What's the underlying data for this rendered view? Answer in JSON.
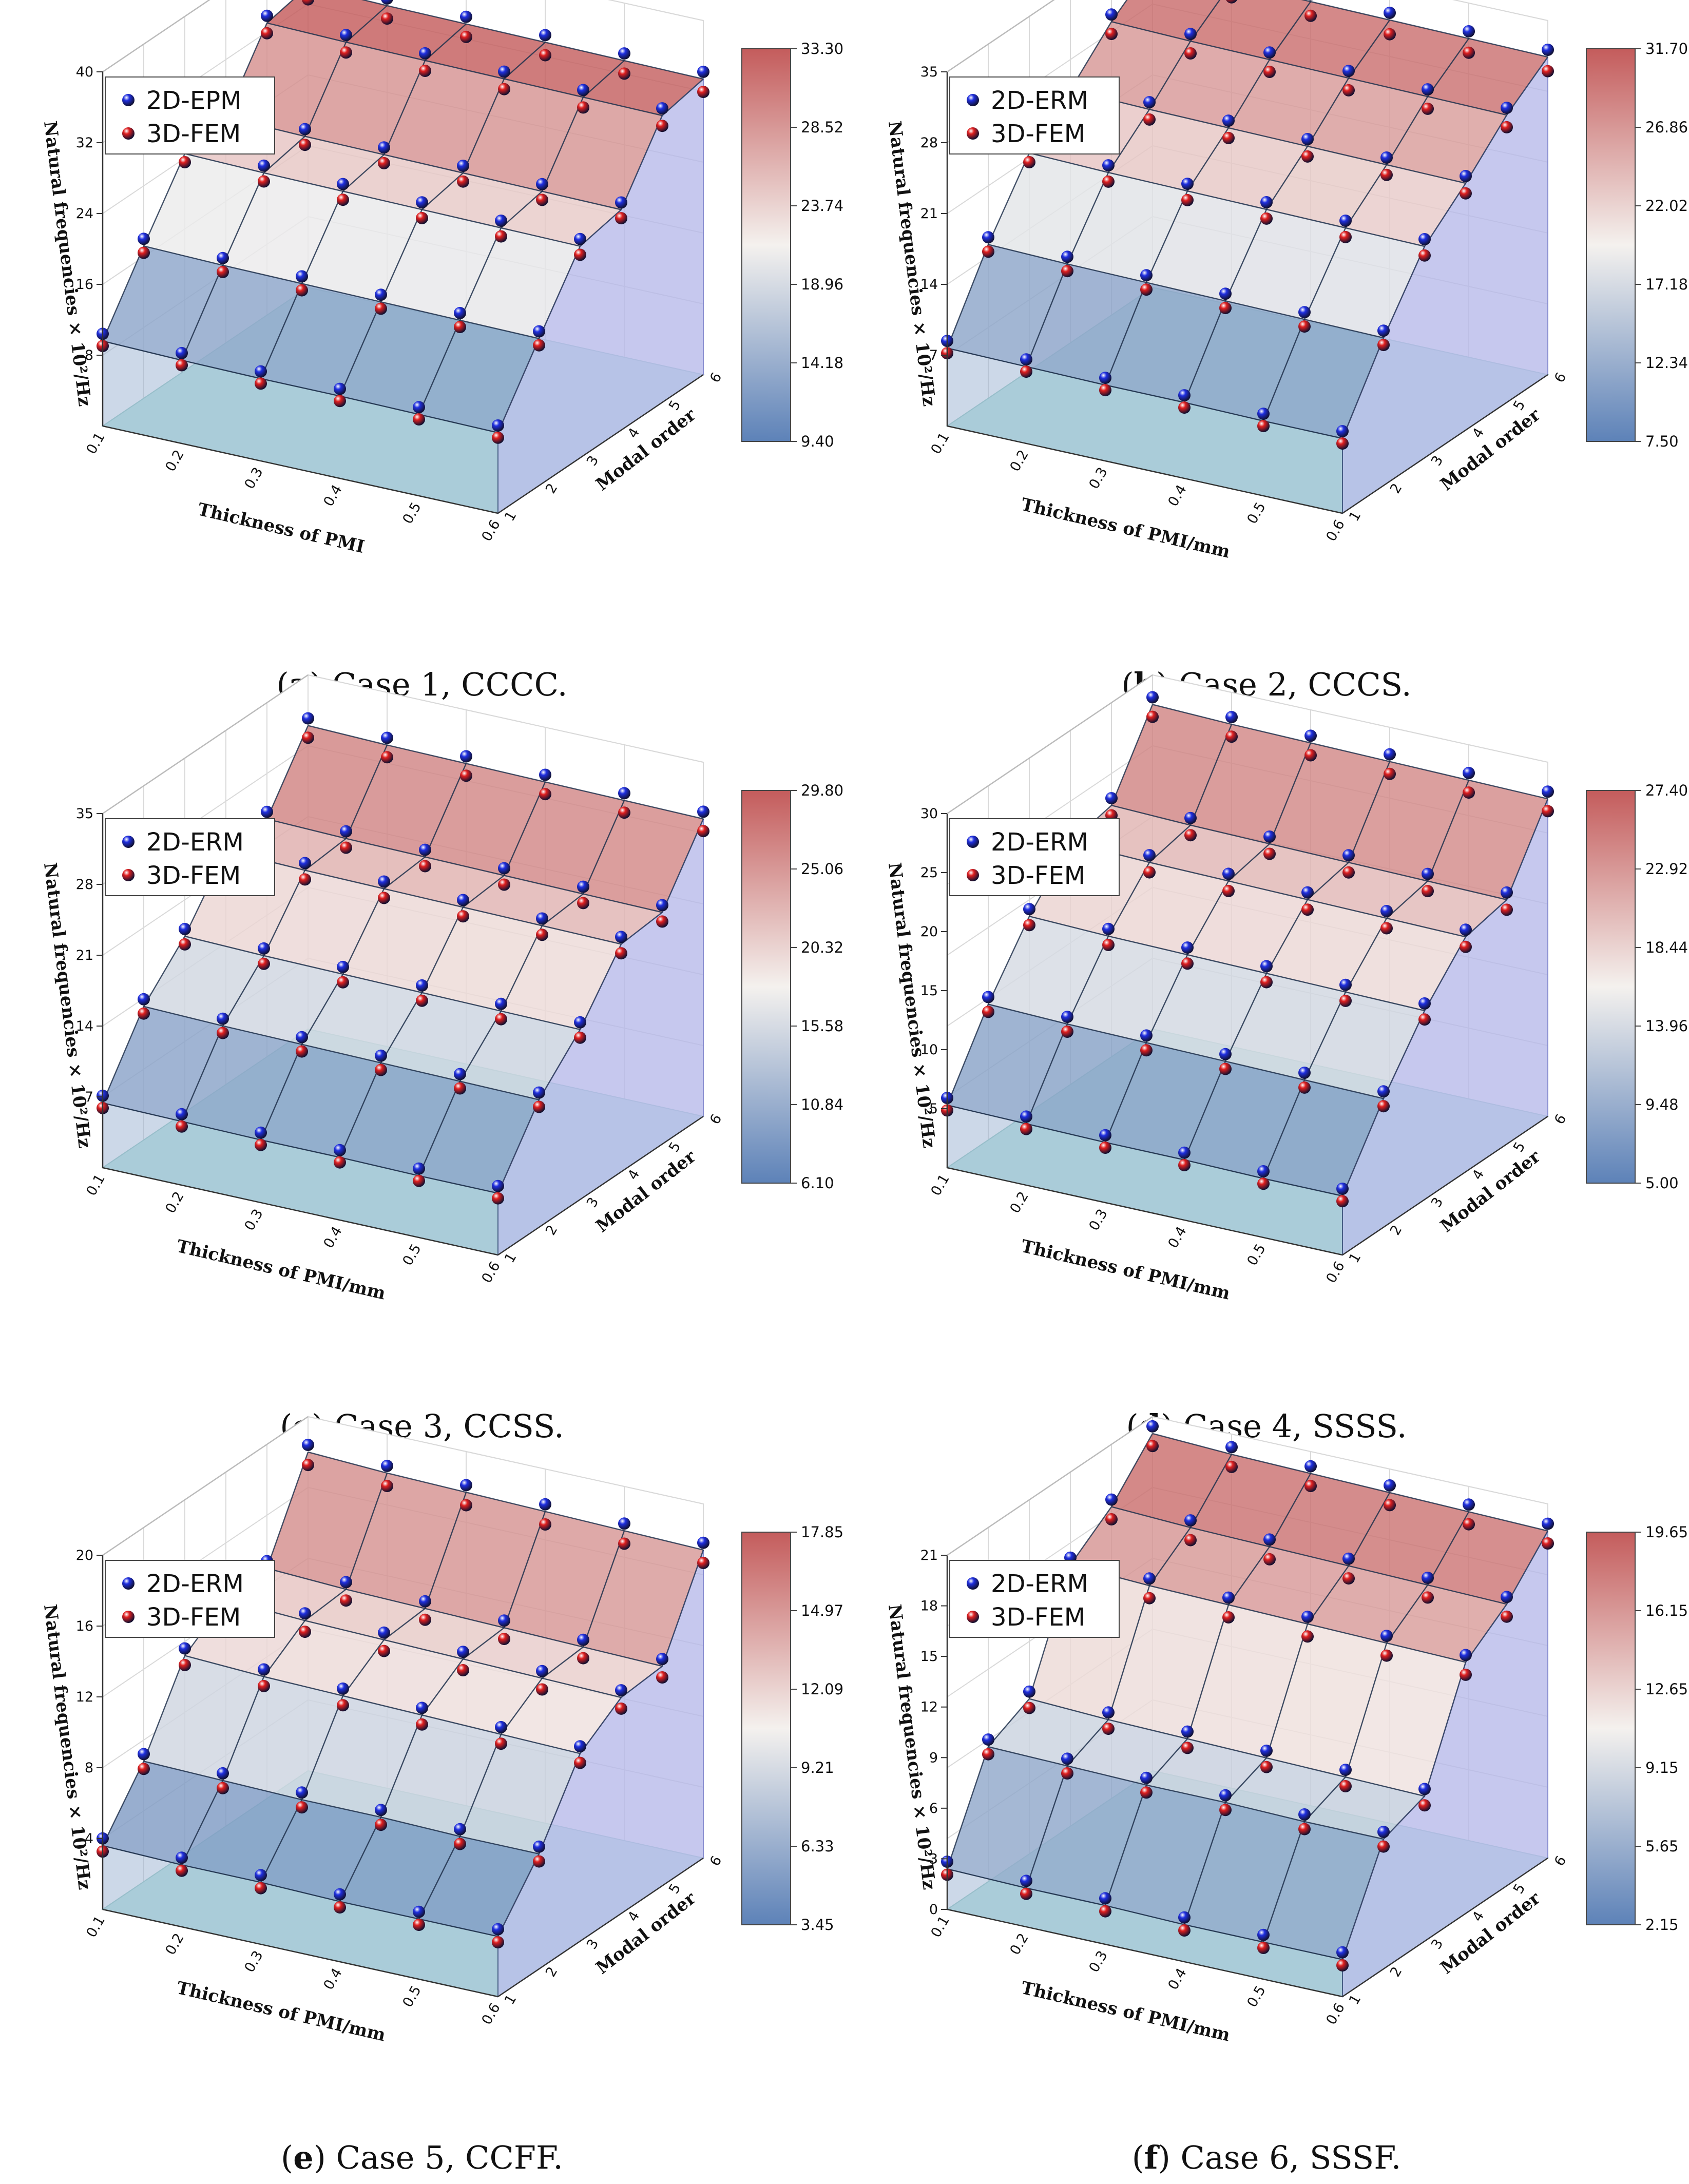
{
  "figure": {
    "common": {
      "x_label": "Thickness of PMI",
      "x_label_mm": "Thickness of PMI/mm",
      "y_label": "Modal order",
      "z_label": "Natural frequencies × 10²/Hz",
      "legend_fem": "3D-FEM"
    },
    "colors": {
      "blue_marker": "#1f2fe0",
      "red_marker": "#e01f1f",
      "cmap_low": "#5d82b8",
      "cmap_mid": "#f4f1ee",
      "cmap_high": "#c45c5c",
      "floor": "#b7e6df",
      "side": "#b3b6e8"
    }
  },
  "chart_data": [
    {
      "type": "surface3d",
      "panel_label": "a",
      "caption": "Case 1, CCCC.",
      "legend": [
        "2D-EPM",
        "3D-FEM"
      ],
      "x_label": "Thickness of PMI",
      "y_label": "Modal order",
      "z_label": "Natural frequencies × 10²/Hz",
      "x": [
        0.1,
        0.2,
        0.3,
        0.4,
        0.5,
        0.6
      ],
      "modes": [
        1,
        2,
        3,
        4,
        5,
        6
      ],
      "zlim": [
        0,
        40
      ],
      "z_ticks": [
        "8",
        "16",
        "24",
        "32",
        "40"
      ],
      "colorbar_ticks": [
        "9.40",
        "14.18",
        "18.96",
        "23.74",
        "28.52",
        "33.30"
      ],
      "series": [
        {
          "name": "2D-EPM",
          "values": [
            [
              9.6,
              9.4,
              9.3,
              9.3,
              9.2,
              9.1
            ],
            [
              17.2,
              17.0,
              16.9,
              16.8,
              16.7,
              16.6
            ],
            [
              24.5,
              24.3,
              24.2,
              24.1,
              24.0,
              23.9
            ],
            [
              25.5,
              25.3,
              25.2,
              25.1,
              25.0,
              24.9
            ],
            [
              33.0,
              32.8,
              32.7,
              32.6,
              32.5,
              32.4
            ],
            [
              34.0,
              33.8,
              33.7,
              33.6,
              33.5,
              33.4
            ]
          ]
        },
        {
          "name": "3D-FEM",
          "values": [
            [
              9.5,
              9.3,
              9.2,
              9.2,
              9.1,
              9.0
            ],
            [
              16.9,
              16.7,
              16.6,
              16.5,
              16.4,
              16.3
            ],
            [
              24.0,
              23.8,
              23.7,
              23.6,
              23.5,
              23.4
            ],
            [
              25.0,
              24.8,
              24.7,
              24.6,
              24.5,
              24.4
            ],
            [
              32.3,
              32.1,
              32.0,
              31.9,
              31.8,
              31.7
            ],
            [
              33.0,
              32.8,
              32.7,
              32.6,
              32.5,
              32.4
            ]
          ]
        }
      ]
    },
    {
      "type": "surface3d",
      "panel_label": "b",
      "caption": "Case 2, CCCS.",
      "legend": [
        "2D-ERM",
        "3D-FEM"
      ],
      "x_label": "Thickness of PMI/mm",
      "y_label": "Modal order",
      "z_label": "Natural frequencies × 10²/Hz",
      "x": [
        0.1,
        0.2,
        0.3,
        0.4,
        0.5,
        0.6
      ],
      "modes": [
        1,
        2,
        3,
        4,
        5,
        6
      ],
      "zlim": [
        0,
        35
      ],
      "z_ticks": [
        "7",
        "14",
        "21",
        "28",
        "35"
      ],
      "colorbar_ticks": [
        "7.50",
        "12.34",
        "17.18",
        "22.02",
        "26.86",
        "31.70"
      ],
      "series": [
        {
          "name": "2D-ERM",
          "values": [
            [
              7.7,
              7.6,
              7.5,
              7.5,
              7.4,
              7.4
            ],
            [
              15.2,
              15.0,
              14.9,
              14.8,
              14.7,
              14.6
            ],
            [
              21.5,
              21.3,
              21.2,
              21.1,
              21.0,
              20.9
            ],
            [
              25.0,
              24.8,
              24.7,
              24.6,
              24.5,
              24.4
            ],
            [
              29.0,
              28.8,
              28.7,
              28.6,
              28.5,
              28.4
            ],
            [
              32.0,
              31.8,
              31.7,
              31.6,
              31.5,
              31.4
            ]
          ]
        },
        {
          "name": "3D-FEM",
          "values": [
            [
              7.6,
              7.5,
              7.4,
              7.4,
              7.3,
              7.3
            ],
            [
              14.9,
              14.7,
              14.6,
              14.5,
              14.4,
              14.3
            ],
            [
              21.0,
              20.8,
              20.7,
              20.6,
              20.5,
              20.4
            ],
            [
              24.4,
              24.2,
              24.1,
              24.0,
              23.9,
              23.8
            ],
            [
              28.2,
              28.0,
              27.9,
              27.8,
              27.7,
              27.6
            ],
            [
              31.0,
              30.8,
              30.7,
              30.6,
              30.5,
              30.4
            ]
          ]
        }
      ]
    },
    {
      "type": "surface3d",
      "panel_label": "c",
      "caption": "Case 3, CCSS.",
      "legend": [
        "2D-ERM",
        "3D-FEM"
      ],
      "x_label": "Thickness of PMI/mm",
      "y_label": "Modal order",
      "z_label": "Natural frequencies × 10²/Hz",
      "x": [
        0.1,
        0.2,
        0.3,
        0.4,
        0.5,
        0.6
      ],
      "modes": [
        1,
        2,
        3,
        4,
        5,
        6
      ],
      "zlim": [
        0,
        35
      ],
      "z_ticks": [
        "7",
        "14",
        "21",
        "28",
        "35"
      ],
      "colorbar_ticks": [
        "6.10",
        "10.84",
        "15.58",
        "20.32",
        "25.06",
        "29.80"
      ],
      "series": [
        {
          "name": "2D-ERM",
          "values": [
            [
              6.4,
              6.3,
              6.2,
              6.2,
              6.1,
              6.1
            ],
            [
              13.2,
              13.0,
              12.9,
              12.8,
              12.7,
              12.6
            ],
            [
              17.4,
              17.2,
              17.1,
              17.0,
              16.9,
              16.8
            ],
            [
              23.1,
              22.9,
              22.8,
              22.7,
              22.6,
              22.5
            ],
            [
              23.5,
              23.3,
              23.2,
              23.1,
              23.0,
              22.9
            ],
            [
              30.0,
              29.8,
              29.7,
              29.6,
              29.5,
              29.4
            ]
          ]
        },
        {
          "name": "3D-FEM",
          "values": [
            [
              6.3,
              6.2,
              6.1,
              6.1,
              6.0,
              6.0
            ],
            [
              12.9,
              12.7,
              12.6,
              12.5,
              12.4,
              12.3
            ],
            [
              17.0,
              16.8,
              16.7,
              16.6,
              16.5,
              16.4
            ],
            [
              22.6,
              22.4,
              22.3,
              22.2,
              22.1,
              22.0
            ],
            [
              23.0,
              22.8,
              22.7,
              22.6,
              22.5,
              22.4
            ],
            [
              29.2,
              29.0,
              28.9,
              28.8,
              28.7,
              28.6
            ]
          ]
        }
      ]
    },
    {
      "type": "surface3d",
      "panel_label": "d",
      "caption": "Case 4, SSSS.",
      "legend": [
        "2D-ERM",
        "3D-FEM"
      ],
      "x_label": "Thickness of PMI/mm",
      "y_label": "Modal order",
      "z_label": "Natural frequencies × 10²/Hz",
      "x": [
        0.1,
        0.2,
        0.3,
        0.4,
        0.5,
        0.6
      ],
      "modes": [
        1,
        2,
        3,
        4,
        5,
        6
      ],
      "zlim": [
        0,
        30
      ],
      "z_ticks": [
        "5",
        "10",
        "15",
        "20",
        "25",
        "30"
      ],
      "colorbar_ticks": [
        "5.00",
        "9.48",
        "13.96",
        "18.44",
        "22.92",
        "27.40"
      ],
      "series": [
        {
          "name": "2D-ERM",
          "values": [
            [
              5.3,
              5.2,
              5.1,
              5.1,
              5.0,
              5.0
            ],
            [
              11.5,
              11.3,
              11.2,
              11.1,
              11.0,
              10.9
            ],
            [
              16.6,
              16.4,
              16.3,
              16.2,
              16.1,
              16.0
            ],
            [
              20.5,
              20.3,
              20.2,
              20.1,
              20.0,
              19.9
            ],
            [
              21.3,
              21.1,
              21.0,
              20.9,
              20.8,
              20.7
            ],
            [
              27.5,
              27.3,
              27.2,
              27.1,
              27.0,
              26.9
            ]
          ]
        },
        {
          "name": "3D-FEM",
          "values": [
            [
              5.2,
              5.1,
              5.0,
              5.0,
              4.9,
              4.9
            ],
            [
              11.2,
              11.0,
              10.9,
              10.8,
              10.7,
              10.6
            ],
            [
              16.2,
              16.0,
              15.9,
              15.8,
              15.7,
              15.6
            ],
            [
              20.0,
              19.8,
              19.7,
              19.6,
              19.5,
              19.4
            ],
            [
              20.8,
              20.6,
              20.5,
              20.4,
              20.3,
              20.2
            ],
            [
              26.8,
              26.6,
              26.5,
              26.4,
              26.3,
              26.2
            ]
          ]
        }
      ]
    },
    {
      "type": "surface3d",
      "panel_label": "e",
      "caption": "Case 5, CCFF.",
      "legend": [
        "2D-ERM",
        "3D-FEM"
      ],
      "x_label": "Thickness of PMI/mm",
      "y_label": "Modal order",
      "z_label": "Natural frequencies × 10²/Hz",
      "x": [
        0.1,
        0.2,
        0.3,
        0.4,
        0.5,
        0.6
      ],
      "modes": [
        1,
        2,
        3,
        4,
        5,
        6
      ],
      "zlim": [
        0,
        20
      ],
      "z_ticks": [
        "4",
        "8",
        "12",
        "16",
        "20"
      ],
      "colorbar_ticks": [
        "3.45",
        "6.33",
        "9.21",
        "12.09",
        "14.97",
        "17.85"
      ],
      "series": [
        {
          "name": "2D-ERM",
          "values": [
            [
              3.6,
              3.5,
              3.5,
              3.4,
              3.4,
              3.4
            ],
            [
              6.8,
              6.7,
              6.6,
              6.6,
              6.5,
              6.5
            ],
            [
              11.2,
              11.0,
              10.9,
              10.8,
              10.7,
              10.6
            ],
            [
              12.8,
              12.6,
              12.5,
              12.4,
              12.3,
              12.2
            ],
            [
              13.0,
              12.8,
              12.7,
              12.6,
              12.5,
              12.4
            ],
            [
              18.0,
              17.8,
              17.7,
              17.6,
              17.5,
              17.4
            ]
          ]
        },
        {
          "name": "3D-FEM",
          "values": [
            [
              3.5,
              3.4,
              3.4,
              3.3,
              3.3,
              3.3
            ],
            [
              6.6,
              6.5,
              6.4,
              6.4,
              6.3,
              6.3
            ],
            [
              10.9,
              10.7,
              10.6,
              10.5,
              10.4,
              10.3
            ],
            [
              12.4,
              12.2,
              12.1,
              12.0,
              11.9,
              11.8
            ],
            [
              12.6,
              12.4,
              12.3,
              12.2,
              12.1,
              12.0
            ],
            [
              17.5,
              17.3,
              17.2,
              17.1,
              17.0,
              16.9
            ]
          ]
        }
      ]
    },
    {
      "type": "surface3d",
      "panel_label": "f",
      "caption": "Case 6, SSSF.",
      "legend": [
        "2D-ERM",
        "3D-FEM"
      ],
      "x_label": "Thickness of PMI/mm",
      "y_label": "Modal order",
      "z_label": "Natural frequencies × 10²/Hz",
      "x": [
        0.1,
        0.2,
        0.3,
        0.4,
        0.5,
        0.6
      ],
      "modes": [
        1,
        2,
        3,
        4,
        5,
        6
      ],
      "zlim": [
        0,
        21
      ],
      "z_ticks": [
        "0",
        "3",
        "6",
        "9",
        "12",
        "15",
        "18",
        "21"
      ],
      "colorbar_ticks": [
        "2.15",
        "5.65",
        "9.15",
        "12.65",
        "16.15",
        "19.65"
      ],
      "series": [
        {
          "name": "2D-ERM",
          "values": [
            [
              2.4,
              2.3,
              2.3,
              2.2,
              2.2,
              2.2
            ],
            [
              8.0,
              7.9,
              7.8,
              7.8,
              7.7,
              7.7
            ],
            [
              9.2,
              9.0,
              8.9,
              8.8,
              8.7,
              8.6
            ],
            [
              15.5,
              15.3,
              15.2,
              15.1,
              15.0,
              14.9
            ],
            [
              17.3,
              17.1,
              17.0,
              16.9,
              16.8,
              16.7
            ],
            [
              20.0,
              19.8,
              19.7,
              19.6,
              19.5,
              19.4
            ]
          ]
        },
        {
          "name": "3D-FEM",
          "values": [
            [
              2.3,
              2.2,
              2.2,
              2.1,
              2.1,
              2.1
            ],
            [
              7.8,
              7.7,
              7.6,
              7.6,
              7.5,
              7.5
            ],
            [
              8.9,
              8.7,
              8.6,
              8.5,
              8.4,
              8.3
            ],
            [
              15.0,
              14.8,
              14.7,
              14.6,
              14.5,
              14.4
            ],
            [
              16.8,
              16.6,
              16.5,
              16.4,
              16.3,
              16.2
            ],
            [
              19.5,
              19.3,
              19.2,
              19.1,
              19.0,
              18.9
            ]
          ]
        }
      ]
    }
  ]
}
